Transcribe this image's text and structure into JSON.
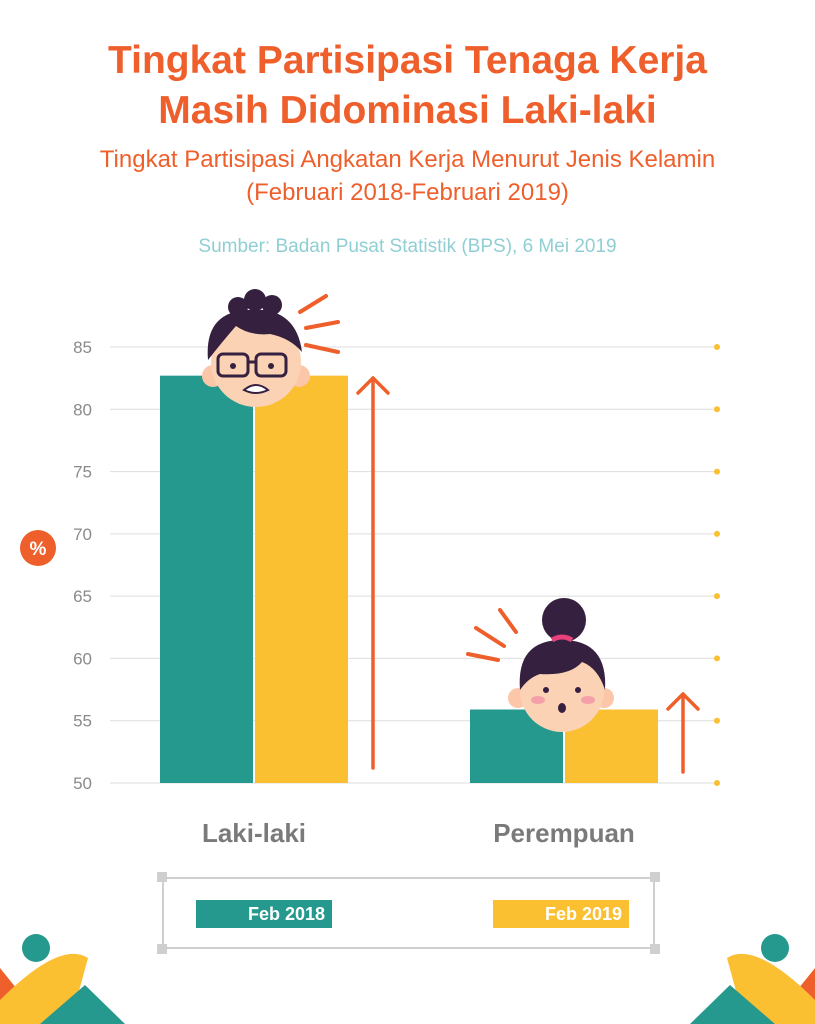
{
  "header": {
    "title_line1": "Tingkat Partisipasi Tenaga Kerja",
    "title_line2": "Masih Didominasi Laki-laki",
    "subtitle_line1": "Tingkat Partisipasi Angkatan Kerja Menurut Jenis Kelamin",
    "subtitle_line2": "(Februari 2018-Februari 2019)",
    "source": "Sumber: Badan Pusat Statistik (BPS), 6 Mei 2019"
  },
  "colors": {
    "accent": "#ee5f2c",
    "feb2018": "#26998f",
    "feb2019": "#fbbf32",
    "grid": "#dedede",
    "tick": "#8a8a8a",
    "source": "#8fcfd4"
  },
  "chart_data": {
    "type": "bar",
    "title": "Tingkat Partisipasi Angkatan Kerja Menurut Jenis Kelamin",
    "ylabel": "%",
    "xlabel": "",
    "ylim": [
      50,
      85
    ],
    "yticks": [
      50,
      55,
      60,
      65,
      70,
      75,
      80,
      85
    ],
    "categories": [
      "Laki-laki",
      "Perempuan"
    ],
    "series": [
      {
        "name": "Feb 2018",
        "values": [
          82.7,
          55.9
        ]
      },
      {
        "name": "Feb 2019",
        "values": [
          82.7,
          55.9
        ]
      }
    ],
    "grid": true,
    "legend_position": "bottom"
  }
}
